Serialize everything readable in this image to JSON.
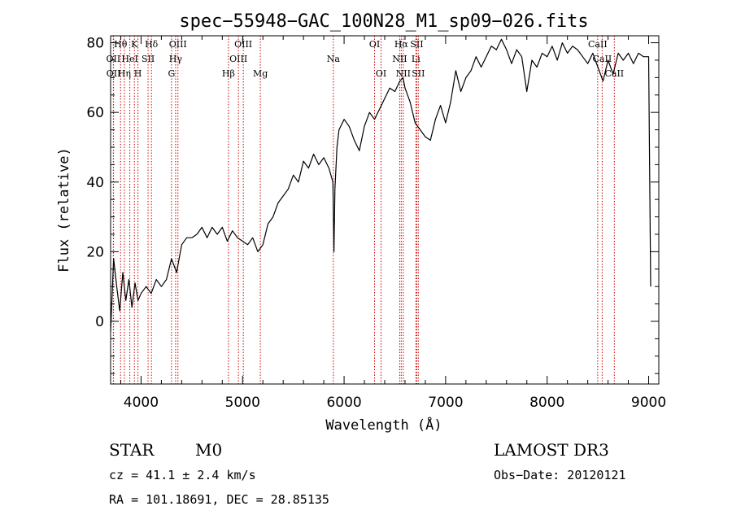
{
  "chart_data": {
    "type": "line",
    "title": "spec−55948−GAC_100N28_M1_sp09−026.fits",
    "xlabel": "Wavelength (Å)",
    "ylabel": "Flux (relative)",
    "xlim": [
      3700,
      9100
    ],
    "ylim": [
      -18,
      82
    ],
    "xticks": [
      4000,
      5000,
      6000,
      7000,
      8000,
      9000
    ],
    "yticks": [
      0,
      20,
      40,
      60,
      80
    ],
    "series": [
      {
        "name": "spectrum",
        "x": [
          3700,
          3730,
          3760,
          3790,
          3820,
          3850,
          3880,
          3910,
          3940,
          3970,
          4000,
          4050,
          4100,
          4150,
          4200,
          4250,
          4300,
          4350,
          4400,
          4450,
          4500,
          4550,
          4600,
          4650,
          4700,
          4750,
          4800,
          4850,
          4900,
          4950,
          5000,
          5050,
          5100,
          5150,
          5200,
          5250,
          5300,
          5350,
          5400,
          5450,
          5500,
          5550,
          5600,
          5650,
          5700,
          5750,
          5800,
          5850,
          5890,
          5900,
          5910,
          5930,
          5950,
          6000,
          6050,
          6100,
          6150,
          6200,
          6250,
          6300,
          6350,
          6400,
          6450,
          6500,
          6550,
          6580,
          6600,
          6650,
          6700,
          6750,
          6800,
          6850,
          6900,
          6950,
          7000,
          7050,
          7100,
          7150,
          7200,
          7250,
          7300,
          7350,
          7400,
          7450,
          7500,
          7550,
          7600,
          7650,
          7700,
          7750,
          7800,
          7850,
          7900,
          7950,
          8000,
          8050,
          8100,
          8150,
          8200,
          8250,
          8300,
          8350,
          8400,
          8450,
          8500,
          8550,
          8600,
          8650,
          8700,
          8750,
          8800,
          8850,
          8900,
          8950,
          9000,
          9020
        ],
        "y": [
          -3,
          18,
          10,
          3,
          14,
          6,
          12,
          4,
          11,
          6,
          8,
          10,
          8,
          12,
          10,
          12,
          18,
          14,
          22,
          24,
          24,
          25,
          27,
          24,
          27,
          25,
          27,
          23,
          26,
          24,
          23,
          22,
          24,
          20,
          22,
          28,
          30,
          34,
          36,
          38,
          42,
          40,
          46,
          44,
          48,
          45,
          47,
          44,
          40,
          20,
          38,
          50,
          55,
          58,
          56,
          52,
          49,
          56,
          60,
          58,
          61,
          64,
          67,
          66,
          69,
          70,
          67,
          63,
          57,
          55,
          53,
          52,
          58,
          62,
          57,
          63,
          72,
          66,
          70,
          72,
          76,
          73,
          76,
          79,
          78,
          81,
          78,
          74,
          78,
          76,
          66,
          75,
          73,
          77,
          76,
          79,
          75,
          80,
          77,
          79,
          78,
          76,
          74,
          77,
          73,
          69,
          75,
          71,
          77,
          75,
          77,
          74,
          77,
          76,
          76,
          10
        ]
      }
    ],
    "lines": [
      {
        "name": "OII",
        "wavelength": 3727,
        "row": 2
      },
      {
        "name": "OII",
        "wavelength": 3729,
        "row": 3
      },
      {
        "name": "Hθ",
        "wavelength": 3798,
        "row": 1
      },
      {
        "name": "Hη",
        "wavelength": 3835,
        "row": 3
      },
      {
        "name": "HeI",
        "wavelength": 3889,
        "row": 2
      },
      {
        "name": "K",
        "wavelength": 3934,
        "row": 1
      },
      {
        "name": "H",
        "wavelength": 3969,
        "row": 3
      },
      {
        "name": "SII",
        "wavelength": 4069,
        "row": 2
      },
      {
        "name": "Hδ",
        "wavelength": 4102,
        "row": 1
      },
      {
        "name": "G",
        "wavelength": 4300,
        "row": 3
      },
      {
        "name": "Hγ",
        "wavelength": 4340,
        "row": 2
      },
      {
        "name": "OIII",
        "wavelength": 4363,
        "row": 1
      },
      {
        "name": "Hβ",
        "wavelength": 4861,
        "row": 3
      },
      {
        "name": "OIII",
        "wavelength": 4959,
        "row": 2
      },
      {
        "name": "OIII",
        "wavelength": 5007,
        "row": 1
      },
      {
        "name": "Mg",
        "wavelength": 5175,
        "row": 3
      },
      {
        "name": "Na",
        "wavelength": 5894,
        "row": 2
      },
      {
        "name": "OI",
        "wavelength": 6300,
        "row": 1
      },
      {
        "name": "OI",
        "wavelength": 6364,
        "row": 3
      },
      {
        "name": "NII",
        "wavelength": 6548,
        "row": 2
      },
      {
        "name": "Hα",
        "wavelength": 6563,
        "row": 1
      },
      {
        "name": "NII",
        "wavelength": 6583,
        "row": 3
      },
      {
        "name": "Li",
        "wavelength": 6707,
        "row": 2
      },
      {
        "name": "SII",
        "wavelength": 6716,
        "row": 1
      },
      {
        "name": "SII",
        "wavelength": 6731,
        "row": 3
      },
      {
        "name": "CaII",
        "wavelength": 8498,
        "row": 1
      },
      {
        "name": "CaII",
        "wavelength": 8542,
        "row": 2
      },
      {
        "name": "CaII",
        "wavelength": 8662,
        "row": 3
      }
    ],
    "grid": false,
    "line_color": "#000000",
    "marker_color": "#cc0000"
  },
  "info": {
    "class": "STAR",
    "subclass": "M0",
    "cz": "cz = 41.1 ± 2.4 km/s",
    "radec": "RA = 101.18691, DEC =  28.85135",
    "survey": "LAMOST DR3",
    "obs_date": "Obs−Date: 20120121"
  }
}
